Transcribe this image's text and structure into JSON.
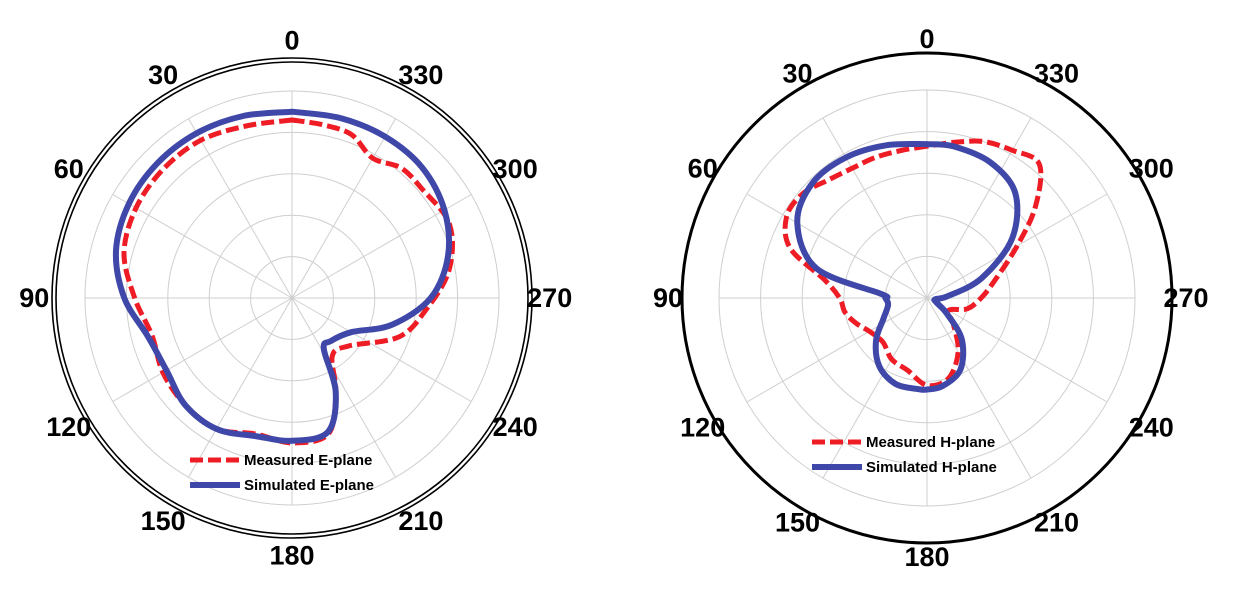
{
  "colors": {
    "measured": "#ee1c25",
    "simulated": "#3f48a8",
    "grid": "#cfcfcf",
    "frame": "#000000"
  },
  "chart_data": [
    {
      "type": "polar",
      "angle_direction": "counterclockwise",
      "zero_position": "top",
      "angle_ticks": [
        "0",
        "30",
        "60",
        "90",
        "120",
        "150",
        "180",
        "210",
        "240",
        "270",
        "300",
        "330"
      ],
      "radial_rings": 5,
      "legend_position": "bottom-center",
      "series": [
        {
          "name": "Measured E-plane",
          "style": "dashed",
          "points": [
            [
              0,
              0.86
            ],
            [
              15,
              0.86
            ],
            [
              30,
              0.88
            ],
            [
              45,
              0.88
            ],
            [
              60,
              0.87
            ],
            [
              75,
              0.84
            ],
            [
              90,
              0.76
            ],
            [
              105,
              0.7
            ],
            [
              120,
              0.72
            ],
            [
              135,
              0.73
            ],
            [
              150,
              0.73
            ],
            [
              165,
              0.68
            ],
            [
              180,
              0.7
            ],
            [
              195,
              0.68
            ],
            [
              205,
              0.5
            ],
            [
              215,
              0.34
            ],
            [
              230,
              0.36
            ],
            [
              250,
              0.55
            ],
            [
              265,
              0.65
            ],
            [
              280,
              0.77
            ],
            [
              295,
              0.84
            ],
            [
              310,
              0.82
            ],
            [
              320,
              0.82
            ],
            [
              330,
              0.78
            ],
            [
              340,
              0.84
            ],
            [
              350,
              0.85
            ],
            [
              360,
              0.86
            ]
          ]
        },
        {
          "name": "Simulated E-plane",
          "style": "solid",
          "points": [
            [
              0,
              0.9
            ],
            [
              15,
              0.91
            ],
            [
              30,
              0.92
            ],
            [
              45,
              0.92
            ],
            [
              60,
              0.91
            ],
            [
              75,
              0.88
            ],
            [
              90,
              0.81
            ],
            [
              105,
              0.72
            ],
            [
              120,
              0.7
            ],
            [
              135,
              0.73
            ],
            [
              150,
              0.73
            ],
            [
              165,
              0.69
            ],
            [
              180,
              0.69
            ],
            [
              195,
              0.67
            ],
            [
              205,
              0.5
            ],
            [
              212,
              0.29
            ],
            [
              222,
              0.28
            ],
            [
              240,
              0.33
            ],
            [
              255,
              0.5
            ],
            [
              270,
              0.67
            ],
            [
              285,
              0.78
            ],
            [
              300,
              0.85
            ],
            [
              315,
              0.89
            ],
            [
              330,
              0.9
            ],
            [
              345,
              0.9
            ],
            [
              360,
              0.9
            ]
          ]
        }
      ]
    },
    {
      "type": "polar",
      "angle_direction": "counterclockwise",
      "zero_position": "top",
      "angle_ticks": [
        "0",
        "30",
        "60",
        "90",
        "120",
        "150",
        "180",
        "210",
        "240",
        "270",
        "300",
        "330"
      ],
      "radial_rings": 5,
      "legend_position": "bottom-center",
      "series": [
        {
          "name": "Measured H-plane",
          "style": "dashed",
          "points": [
            [
              0,
              0.73
            ],
            [
              10,
              0.72
            ],
            [
              20,
              0.72
            ],
            [
              30,
              0.72
            ],
            [
              40,
              0.74
            ],
            [
              50,
              0.78
            ],
            [
              60,
              0.78
            ],
            [
              70,
              0.7
            ],
            [
              80,
              0.5
            ],
            [
              90,
              0.42
            ],
            [
              100,
              0.4
            ],
            [
              110,
              0.36
            ],
            [
              120,
              0.32
            ],
            [
              135,
              0.3
            ],
            [
              150,
              0.34
            ],
            [
              165,
              0.36
            ],
            [
              180,
              0.42
            ],
            [
              195,
              0.4
            ],
            [
              210,
              0.3
            ],
            [
              225,
              0.18
            ],
            [
              240,
              0.12
            ],
            [
              255,
              0.2
            ],
            [
              270,
              0.26
            ],
            [
              285,
              0.34
            ],
            [
              300,
              0.5
            ],
            [
              310,
              0.68
            ],
            [
              320,
              0.84
            ],
            [
              330,
              0.82
            ],
            [
              340,
              0.8
            ],
            [
              350,
              0.76
            ],
            [
              360,
              0.73
            ]
          ]
        },
        {
          "name": "Simulated H-plane",
          "style": "solid",
          "points": [
            [
              0,
              0.74
            ],
            [
              15,
              0.76
            ],
            [
              30,
              0.78
            ],
            [
              45,
              0.78
            ],
            [
              60,
              0.72
            ],
            [
              75,
              0.55
            ],
            [
              85,
              0.22
            ],
            [
              90,
              0.2
            ],
            [
              100,
              0.19
            ],
            [
              115,
              0.23
            ],
            [
              130,
              0.32
            ],
            [
              145,
              0.4
            ],
            [
              160,
              0.44
            ],
            [
              175,
              0.44
            ],
            [
              180,
              0.44
            ],
            [
              190,
              0.43
            ],
            [
              205,
              0.38
            ],
            [
              220,
              0.26
            ],
            [
              232,
              0.12
            ],
            [
              245,
              0.05
            ],
            [
              262,
              0.04
            ],
            [
              275,
              0.1
            ],
            [
              290,
              0.28
            ],
            [
              305,
              0.5
            ],
            [
              320,
              0.66
            ],
            [
              335,
              0.72
            ],
            [
              350,
              0.74
            ],
            [
              360,
              0.74
            ]
          ]
        }
      ]
    }
  ]
}
